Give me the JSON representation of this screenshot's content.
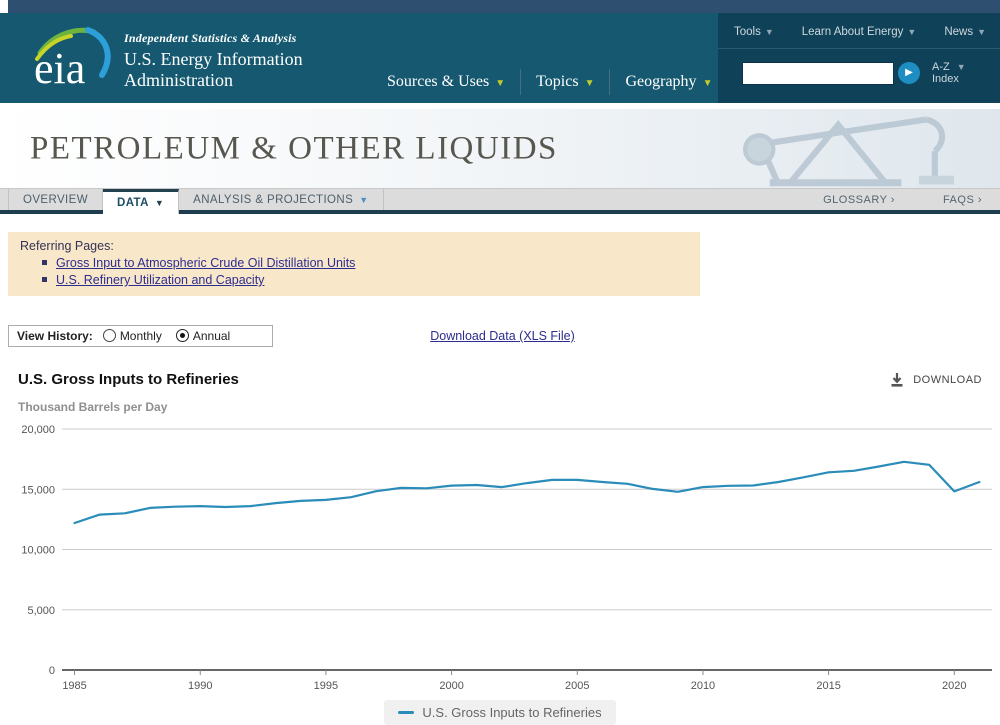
{
  "header": {
    "tagline": "Independent Statistics & Analysis",
    "org_line1": "U.S. Energy Information",
    "org_line2": "Administration",
    "main_nav": [
      {
        "label": "Sources & Uses"
      },
      {
        "label": "Topics"
      },
      {
        "label": "Geography"
      }
    ],
    "utility_nav": [
      {
        "label": "Tools"
      },
      {
        "label": "Learn About Energy"
      },
      {
        "label": "News"
      }
    ],
    "search": {
      "value": "",
      "button": "go"
    },
    "az_line1": "A-Z",
    "az_line2": "Index"
  },
  "banner": {
    "title": "PETROLEUM & OTHER LIQUIDS"
  },
  "tabs": {
    "items": [
      {
        "label": "OVERVIEW",
        "active": false
      },
      {
        "label": "DATA",
        "active": true
      },
      {
        "label": "ANALYSIS & PROJECTIONS",
        "active": false
      }
    ],
    "right_links": [
      {
        "label": "GLOSSARY ›"
      },
      {
        "label": "FAQS ›"
      }
    ]
  },
  "referring": {
    "label": "Referring Pages:",
    "links": [
      {
        "label": "Gross Input to Atmospheric Crude Oil Distillation Units"
      },
      {
        "label": "U.S. Refinery Utilization and Capacity"
      }
    ]
  },
  "controls": {
    "view_history": {
      "label": "View History:",
      "options": [
        {
          "label": "Monthly",
          "selected": false
        },
        {
          "label": "Annual",
          "selected": true
        }
      ]
    },
    "download_link": "Download Data (XLS File)"
  },
  "chart_header": {
    "title": "U.S. Gross Inputs to Refineries",
    "download_label": "DOWNLOAD"
  },
  "colors": {
    "header_teal": "#15586f",
    "header_strip": "#2e4f70",
    "utility_panel": "#0f4158",
    "gold_arrow": "#c3cc2a",
    "referring_bg": "#f9e7ca",
    "link_navy": "#2d2d8f",
    "line_teal": "#2a8cb8"
  },
  "chart_data": {
    "type": "line",
    "title": "U.S. Gross Inputs to Refineries",
    "ylabel": "Thousand Barrels per Day",
    "xlabel": "",
    "grid": true,
    "legend_position": "bottom",
    "x_range": [
      1984.5,
      2021.5
    ],
    "ylim": [
      0,
      20000
    ],
    "y_ticks": [
      0,
      5000,
      10000,
      15000,
      20000
    ],
    "x_ticks": [
      1985,
      1990,
      1995,
      2000,
      2005,
      2010,
      2015,
      2020
    ],
    "series": [
      {
        "name": "U.S. Gross Inputs to Refineries",
        "color": "#2a8cb8",
        "x": [
          1985,
          1986,
          1987,
          1988,
          1989,
          1990,
          1991,
          1992,
          1993,
          1994,
          1995,
          1996,
          1997,
          1998,
          1999,
          2000,
          2001,
          2002,
          2003,
          2004,
          2005,
          2006,
          2007,
          2008,
          2009,
          2010,
          2011,
          2012,
          2013,
          2014,
          2015,
          2016,
          2017,
          2018,
          2019,
          2020,
          2021
        ],
        "values": [
          12200,
          12900,
          13000,
          13450,
          13550,
          13600,
          13530,
          13600,
          13850,
          14030,
          14120,
          14340,
          14840,
          15110,
          15080,
          15300,
          15350,
          15180,
          15510,
          15780,
          15780,
          15600,
          15450,
          15030,
          14790,
          15180,
          15290,
          15310,
          15600,
          15990,
          16410,
          16530,
          16890,
          17280,
          17030,
          14820,
          15600
        ]
      }
    ]
  },
  "legend": {
    "label": "U.S. Gross Inputs to Refineries"
  }
}
